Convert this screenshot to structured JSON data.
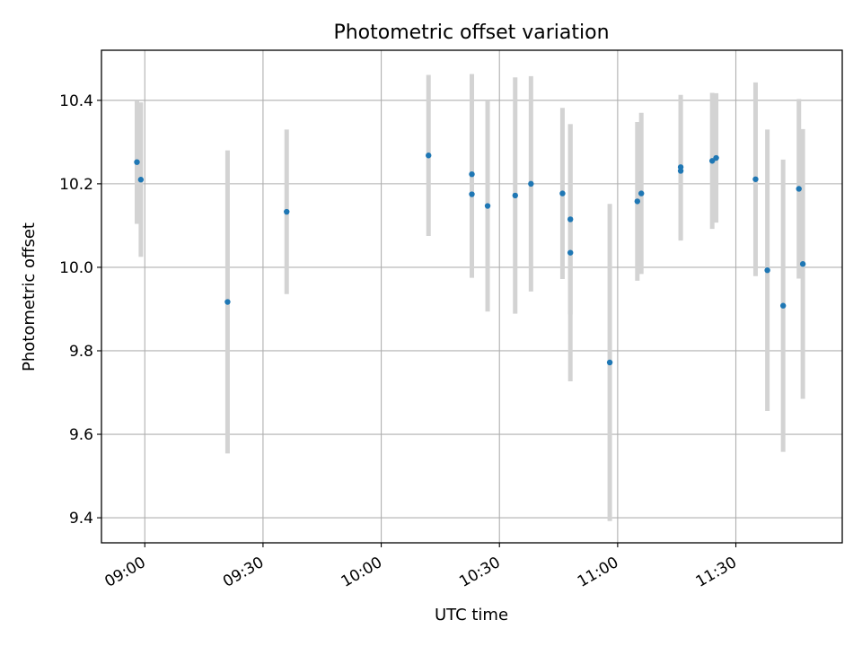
{
  "chart_data": {
    "type": "scatter",
    "title": "Photometric offset variation",
    "xlabel": "UTC time",
    "ylabel": "Photometric offset",
    "xlim": [
      "08:49",
      "11:57"
    ],
    "ylim": [
      9.34,
      10.52
    ],
    "x_ticks": [
      "09:00",
      "09:30",
      "10:00",
      "10:30",
      "11:00",
      "11:30"
    ],
    "y_ticks": [
      9.4,
      9.6,
      9.8,
      10.0,
      10.2,
      10.4
    ],
    "grid": true,
    "colors": {
      "marker": "#1f77b4",
      "errorbar": "#d3d3d3",
      "grid": "#b0b0b0"
    },
    "series": [
      {
        "points": [
          {
            "x": "08:58",
            "y": 10.252,
            "err": 0.148
          },
          {
            "x": "08:59",
            "y": 10.21,
            "err": 0.185
          },
          {
            "x": "09:21",
            "y": 9.917,
            "err": 0.363
          },
          {
            "x": "09:36",
            "y": 10.133,
            "err": 0.197
          },
          {
            "x": "10:12",
            "y": 10.268,
            "err": 0.193
          },
          {
            "x": "10:23",
            "y": 10.175,
            "err": 0.2
          },
          {
            "x": "10:23",
            "y": 10.223,
            "err": 0.24
          },
          {
            "x": "10:27",
            "y": 10.147,
            "err": 0.253
          },
          {
            "x": "10:34",
            "y": 10.172,
            "err": 0.283
          },
          {
            "x": "10:38",
            "y": 10.2,
            "err": 0.258
          },
          {
            "x": "10:46",
            "y": 10.177,
            "err": 0.205
          },
          {
            "x": "10:48",
            "y": 10.115,
            "err": 0.228
          },
          {
            "x": "10:48",
            "y": 10.035,
            "err": 0.308
          },
          {
            "x": "10:58",
            "y": 9.772,
            "err": 0.38
          },
          {
            "x": "11:05",
            "y": 10.158,
            "err": 0.19
          },
          {
            "x": "11:06",
            "y": 10.177,
            "err": 0.193
          },
          {
            "x": "11:16",
            "y": 10.231,
            "err": 0.167
          },
          {
            "x": "11:16",
            "y": 10.24,
            "err": 0.173
          },
          {
            "x": "11:24",
            "y": 10.255,
            "err": 0.163
          },
          {
            "x": "11:25",
            "y": 10.262,
            "err": 0.155
          },
          {
            "x": "11:35",
            "y": 10.211,
            "err": 0.232
          },
          {
            "x": "11:38",
            "y": 9.993,
            "err": 0.337
          },
          {
            "x": "11:42",
            "y": 9.908,
            "err": 0.35
          },
          {
            "x": "11:46",
            "y": 10.188,
            "err": 0.215
          },
          {
            "x": "11:47",
            "y": 10.008,
            "err": 0.323
          }
        ]
      }
    ]
  }
}
